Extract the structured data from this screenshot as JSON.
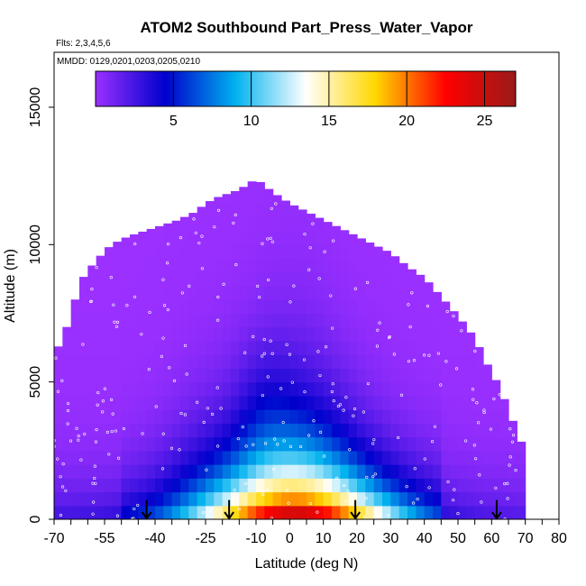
{
  "chart_data": {
    "type": "heatmap",
    "title": "ATOM2 Southbound Part_Press_Water_Vapor",
    "subtitle_flights": "Flts: 2,3,4,5,6",
    "subtitle_dates": "MMDD: 0129,0201,0203,0205,0210",
    "xlabel": "Latitude (deg N)",
    "ylabel": "Altitude (m)",
    "xlim": [
      -70,
      80
    ],
    "ylim": [
      0,
      17000
    ],
    "x_ticks": [
      -70,
      -55,
      -40,
      -25,
      -10,
      0,
      10,
      20,
      30,
      40,
      50,
      60,
      70,
      80
    ],
    "x_ticks_all": [
      -70,
      -65,
      -60,
      -55,
      -50,
      -45,
      -40,
      -35,
      -30,
      -25,
      -20,
      -15,
      -10,
      -5,
      0,
      5,
      10,
      15,
      20,
      25,
      30,
      35,
      40,
      45,
      50,
      55,
      60,
      65,
      70,
      75,
      80
    ],
    "y_ticks": [
      0,
      5000,
      10000,
      15000
    ],
    "colorbar": {
      "range": [
        0,
        27
      ],
      "ticks": [
        5,
        10,
        15,
        20,
        25
      ],
      "colors": [
        "#9b30ff",
        "#0000cd",
        "#00b2ee",
        "#ffffff",
        "#ffd700",
        "#ff0000",
        "#9a1a1a"
      ]
    },
    "profile_arrows_lat": [
      -42.5,
      -18,
      19.5,
      61.5
    ],
    "envelope_max_alt": [
      [
        -70,
        6000
      ],
      [
        -67,
        6700
      ],
      [
        -65,
        7500
      ],
      [
        -63,
        8300
      ],
      [
        -61,
        8900
      ],
      [
        -57,
        9500
      ],
      [
        -53,
        10000
      ],
      [
        -48,
        10300
      ],
      [
        -43,
        10500
      ],
      [
        -38,
        10700
      ],
      [
        -33,
        10900
      ],
      [
        -28,
        11200
      ],
      [
        -25,
        11500
      ],
      [
        -22,
        11700
      ],
      [
        -15,
        12000
      ],
      [
        -10,
        12400
      ],
      [
        -5,
        11900
      ],
      [
        0,
        11500
      ],
      [
        5,
        11200
      ],
      [
        10,
        10900
      ],
      [
        15,
        10600
      ],
      [
        20,
        10300
      ],
      [
        25,
        10000
      ],
      [
        30,
        9700
      ],
      [
        35,
        9200
      ],
      [
        40,
        8800
      ],
      [
        45,
        8100
      ],
      [
        50,
        7400
      ],
      [
        55,
        6600
      ],
      [
        58,
        5800
      ],
      [
        62,
        4900
      ],
      [
        65,
        4000
      ],
      [
        68,
        3000
      ],
      [
        71,
        2300
      ]
    ]
  }
}
